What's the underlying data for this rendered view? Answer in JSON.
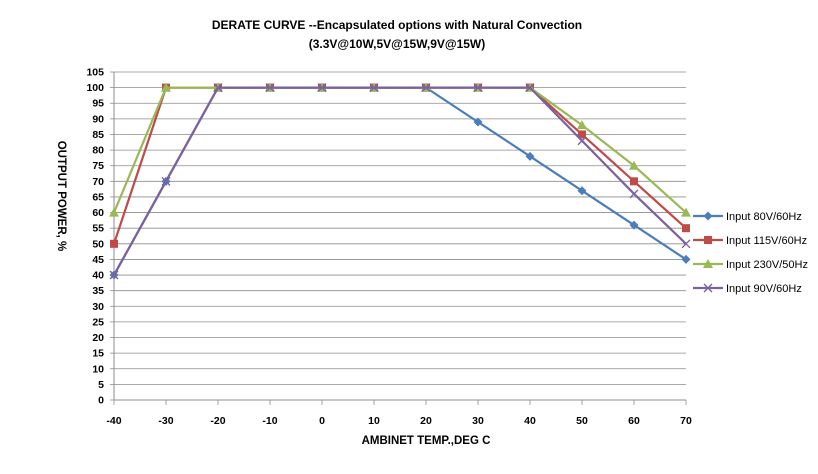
{
  "chart_data": {
    "type": "line",
    "title": "DERATE  CURVE --Encapsulated options  with  Natural Convection",
    "subtitle": "(3.3V@10W,5V@15W,9V@15W)",
    "xlabel": "AMBINET TEMP.,DEG C",
    "ylabel": "OUTPUT  POWER, %",
    "x": [
      -40,
      -30,
      -20,
      -10,
      0,
      10,
      20,
      30,
      40,
      50,
      60,
      70
    ],
    "xlim": [
      -40,
      70
    ],
    "ylim": [
      0,
      105
    ],
    "y_ticks": [
      0,
      5,
      10,
      15,
      20,
      25,
      30,
      35,
      40,
      45,
      50,
      55,
      60,
      65,
      70,
      75,
      80,
      85,
      90,
      95,
      100,
      105
    ],
    "grid": "horizontal",
    "legend_position": "right",
    "series": [
      {
        "name": "Input 80V/60Hz",
        "color": "#4a7ebb",
        "marker": "diamond",
        "values": [
          40,
          70,
          100,
          100,
          100,
          100,
          100,
          89,
          78,
          67,
          56,
          45
        ]
      },
      {
        "name": "Input 115V/60Hz",
        "color": "#be4b48",
        "marker": "square",
        "values": [
          50,
          100,
          100,
          100,
          100,
          100,
          100,
          100,
          100,
          85,
          70,
          55
        ]
      },
      {
        "name": "Input 230V/50Hz",
        "color": "#98b954",
        "marker": "triangle",
        "values": [
          60,
          100,
          100,
          100,
          100,
          100,
          100,
          100,
          100,
          88,
          75,
          60
        ]
      },
      {
        "name": "Input 90V/60Hz",
        "color": "#7d60a0",
        "marker": "x",
        "values": [
          40,
          70,
          100,
          100,
          100,
          100,
          100,
          100,
          100,
          83,
          66,
          50
        ]
      }
    ]
  }
}
